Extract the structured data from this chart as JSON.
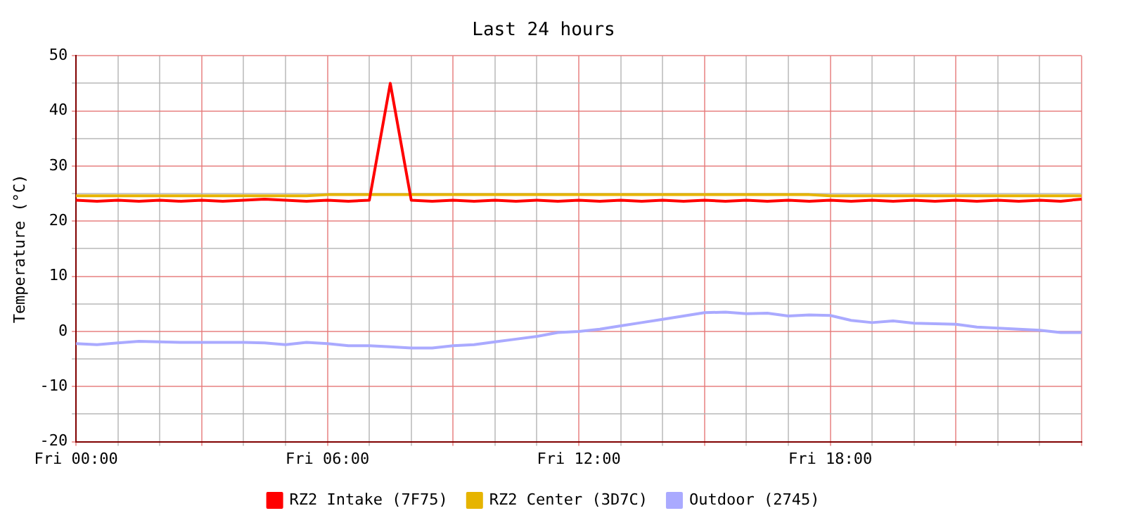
{
  "chart_data": {
    "type": "line",
    "title": "Last 24 hours",
    "ylabel": "Temperature (°C)",
    "categories": [
      "Fri 00:00",
      null,
      null,
      null,
      null,
      null,
      null,
      null,
      null,
      null,
      null,
      null,
      "Fri 06:00",
      null,
      null,
      null,
      null,
      null,
      null,
      null,
      null,
      null,
      null,
      null,
      "Fri 12:00",
      null,
      null,
      null,
      null,
      null,
      null,
      null,
      null,
      null,
      null,
      null,
      "Fri 18:00",
      null,
      null,
      null,
      null,
      null,
      null,
      null,
      null,
      null,
      null,
      null,
      null
    ],
    "ylim": [
      -20,
      50
    ],
    "yticks": [
      -20,
      {
        "value": -15,
        "label": null
      },
      -10,
      {
        "value": -5,
        "label": null
      },
      0,
      {
        "value": 5,
        "label": null
      },
      10,
      {
        "value": 15,
        "label": null
      },
      20,
      {
        "value": 25,
        "label": null
      },
      30,
      {
        "value": 35,
        "label": null
      },
      40,
      {
        "value": 45,
        "label": null
      },
      50
    ],
    "grid": true,
    "legend": "bottom",
    "marker": "none",
    "line_style": "solid",
    "series": [
      {
        "name": "RZ2 Intake (7F75)",
        "color": "#ff0000",
        "values": [
          23.8,
          23.6,
          23.8,
          23.6,
          23.8,
          23.6,
          23.8,
          23.6,
          23.8,
          24.0,
          23.8,
          23.6,
          23.8,
          23.6,
          23.8,
          45,
          23.8,
          23.6,
          23.8,
          23.6,
          23.8,
          23.6,
          23.8,
          23.6,
          23.8,
          23.6,
          23.8,
          23.6,
          23.8,
          23.6,
          23.8,
          23.6,
          23.8,
          23.6,
          23.8,
          23.6,
          23.8,
          23.6,
          23.8,
          23.6,
          23.8,
          23.6,
          23.8,
          23.6,
          23.8,
          23.6,
          23.8,
          23.6,
          24.0
        ]
      },
      {
        "name": "RZ2 Center (3D7C)",
        "color": "#e6b400",
        "values": [
          24.6,
          24.6,
          24.6,
          24.6,
          24.6,
          24.6,
          24.6,
          24.6,
          24.6,
          24.6,
          24.6,
          24.6,
          24.8,
          24.8,
          24.8,
          24.8,
          24.8,
          24.8,
          24.8,
          24.8,
          24.8,
          24.8,
          24.8,
          24.8,
          24.8,
          24.8,
          24.8,
          24.8,
          24.8,
          24.8,
          24.8,
          24.8,
          24.8,
          24.8,
          24.8,
          24.8,
          24.6,
          24.6,
          24.6,
          24.6,
          24.6,
          24.6,
          24.6,
          24.6,
          24.6,
          24.6,
          24.6,
          24.6,
          24.6
        ]
      },
      {
        "name": "Outdoor (2745)",
        "color": "#aaaaff",
        "values": [
          -2.2,
          -2.4,
          -2.1,
          -1.8,
          -1.9,
          -2.0,
          -2.0,
          -2.0,
          -2.0,
          -2.1,
          -2.4,
          -2.0,
          -2.2,
          -2.6,
          -2.6,
          -2.8,
          -3.0,
          -3.0,
          -2.6,
          -2.4,
          -1.9,
          -1.4,
          -0.9,
          -0.2,
          0.0,
          0.4,
          1.0,
          1.6,
          2.2,
          2.8,
          3.4,
          3.5,
          3.2,
          3.3,
          2.8,
          3.0,
          2.9,
          2.0,
          1.6,
          1.9,
          1.5,
          1.4,
          1.3,
          0.8,
          0.6,
          0.4,
          0.2,
          -0.2,
          -0.2
        ]
      }
    ]
  }
}
